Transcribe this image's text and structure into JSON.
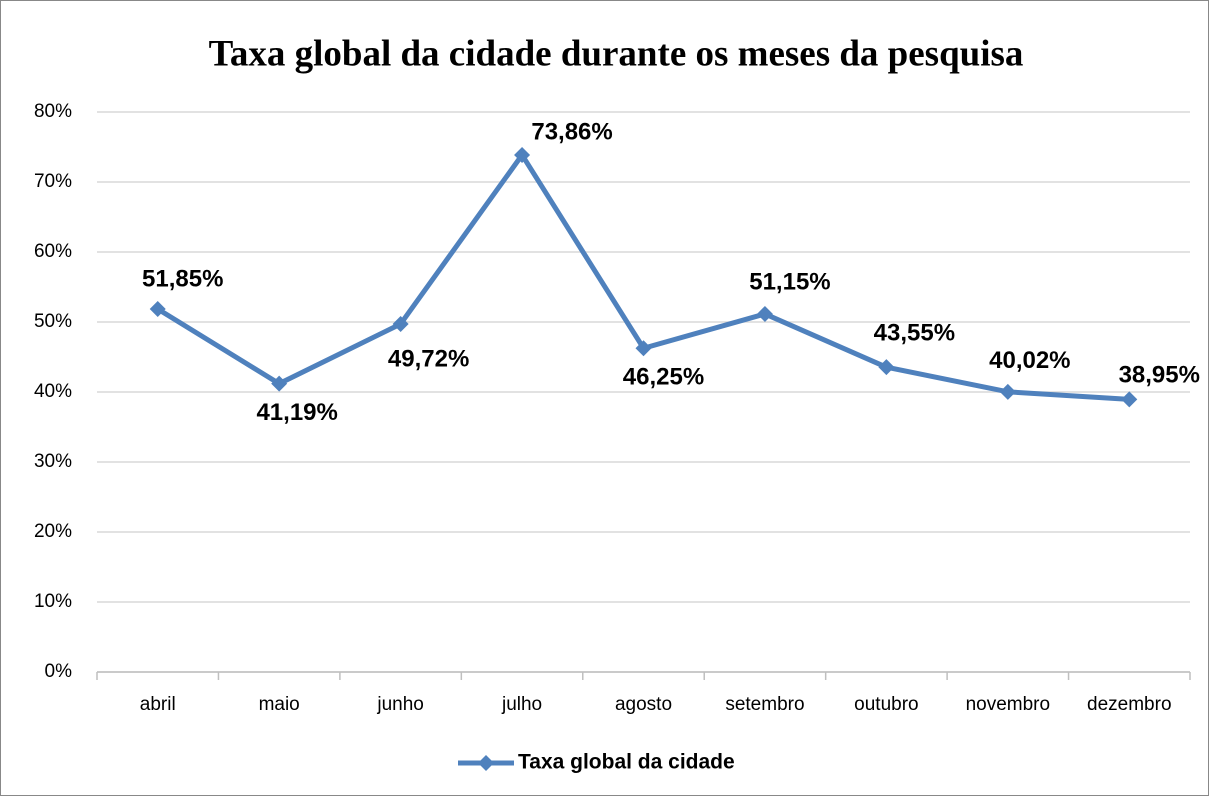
{
  "chart_data": {
    "type": "line",
    "title": "Taxa global da cidade durante os meses da pesquisa",
    "categories": [
      "abril",
      "maio",
      "junho",
      "julho",
      "agosto",
      "setembro",
      "outubro",
      "novembro",
      "dezembro"
    ],
    "series": [
      {
        "name": "Taxa global da cidade",
        "color": "#4f81bd",
        "values": [
          51.85,
          41.19,
          49.72,
          73.86,
          46.25,
          51.15,
          43.55,
          40.02,
          38.95
        ],
        "value_labels": [
          "51,85%",
          "41,19%",
          "49,72%",
          "73,86%",
          "46,25%",
          "51,15%",
          "43,55%",
          "40,02%",
          "38,95%"
        ]
      }
    ],
    "ylim": [
      0,
      80
    ],
    "yticks": [
      {
        "value": 0,
        "label": "0%"
      },
      {
        "value": 10,
        "label": "10%"
      },
      {
        "value": 20,
        "label": "20%"
      },
      {
        "value": 30,
        "label": "30%"
      },
      {
        "value": 40,
        "label": "40%"
      },
      {
        "value": 50,
        "label": "50%"
      },
      {
        "value": 60,
        "label": "60%"
      },
      {
        "value": 70,
        "label": "70%"
      },
      {
        "value": 80,
        "label": "80%"
      }
    ],
    "grid": true,
    "legend": "bottom"
  }
}
